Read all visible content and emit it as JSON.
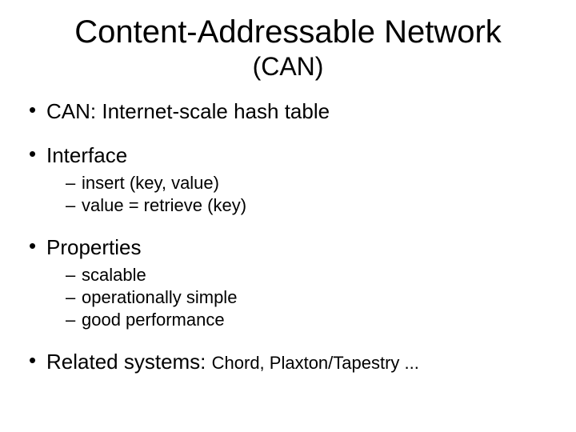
{
  "background_color": "#ffffff",
  "text_color": "#000000",
  "font_family": "Arial",
  "title": "Content-Addressable Network",
  "subtitle": "(CAN)",
  "title_fontsize": 40,
  "subtitle_fontsize": 32,
  "body_fontsize": 26,
  "sub_fontsize": 22,
  "bullets": [
    {
      "text": "CAN: Internet-scale hash table",
      "children": []
    },
    {
      "text": "Interface",
      "children": [
        "insert (key, value)",
        "value = retrieve (key)"
      ]
    },
    {
      "text": "Properties",
      "children": [
        "scalable",
        "operationally simple",
        "good performance"
      ]
    },
    {
      "text": "Related systems: ",
      "inline_tail": "Chord, Plaxton/Tapestry ...",
      "children": []
    }
  ]
}
